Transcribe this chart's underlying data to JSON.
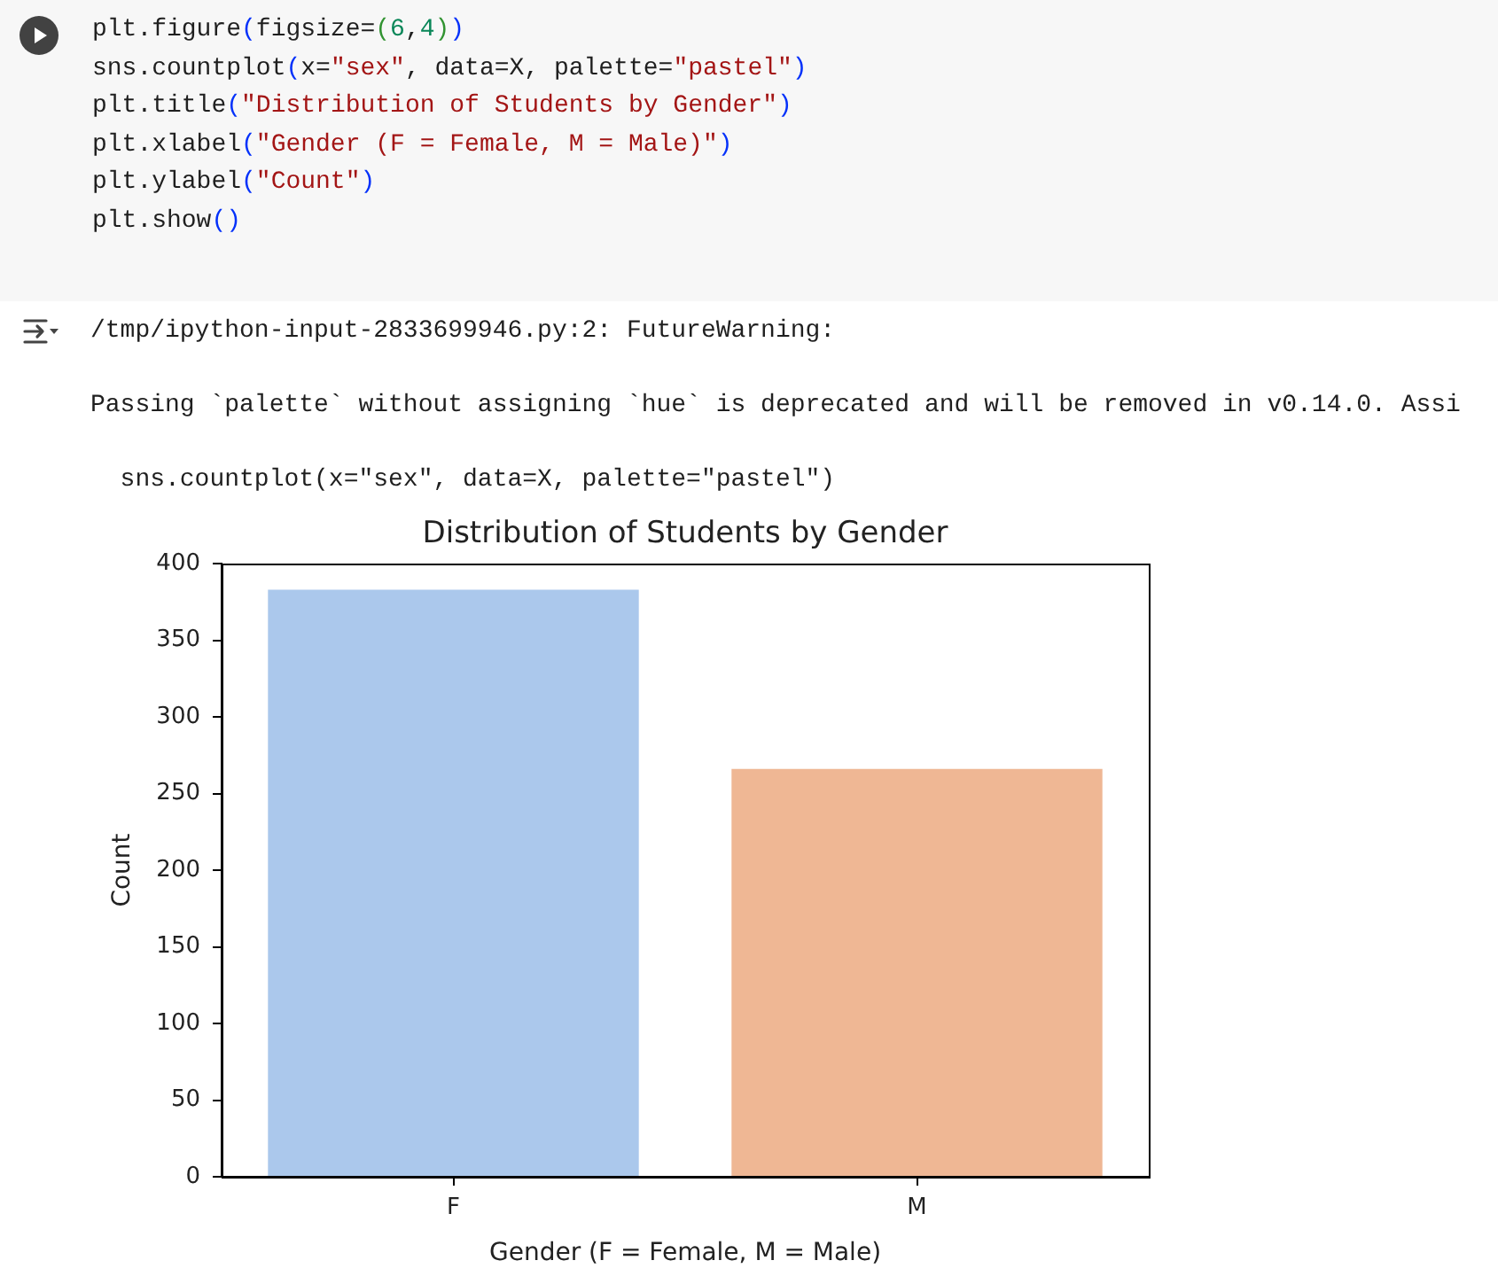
{
  "chart_data": {
    "type": "bar",
    "title": "Distribution of Students by Gender",
    "xlabel": "Gender (F = Female, M = Male)",
    "ylabel": "Count",
    "categories": [
      "F",
      "M"
    ],
    "values": [
      383,
      266
    ],
    "colors": [
      "#abc8ec",
      "#efb794"
    ],
    "ylim": [
      0,
      400
    ],
    "yticks": [
      0,
      50,
      100,
      150,
      200,
      250,
      300,
      350,
      400
    ],
    "annotations": [
      "plt.figure(figsize=(6,4))\nsns.countplot(x=\"sex\", data=X, palette=\"pastel\")\nplt.title(\"Distribution of Students by Gender\")\nplt.xlabel(\"Gender (F = Female, M = Male)\")\nplt.ylabel(\"Count\")\nplt.show()",
      "/tmp/ipython-input-2833699946.py:2: FutureWarning:\n\nPassing `palette` without assigning `hue` is deprecated and will be removed in v0.14.0. Assi\n\n  sns.countplot(x=\"sex\", data=X, palette=\"pastel\")"
    ]
  }
}
